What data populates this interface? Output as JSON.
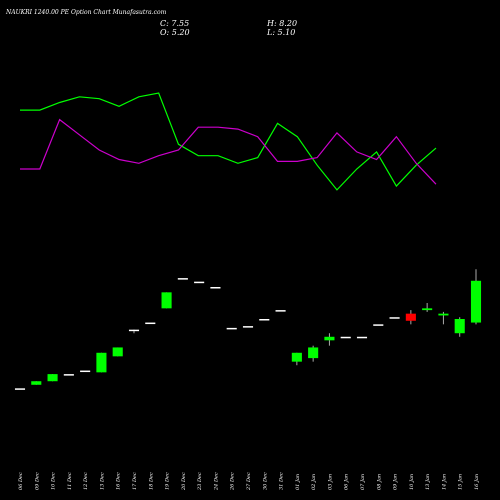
{
  "header": {
    "title": "NAUKRI 1240.00 PE Option Chart Munafasutra.com",
    "close": "C: 7.55",
    "open": "O: 5.20",
    "high": "H: 8.20",
    "low": "L: 5.10"
  },
  "colors": {
    "background": "#000000",
    "green_line": "#00ff00",
    "magenta_line": "#cc00cc",
    "up_candle": "#00ff00",
    "down_candle": "#ff0000",
    "neutral_candle": "#ffffff",
    "wick": "#aaaaaa",
    "text": "#ffffff"
  },
  "chart_data": {
    "type": "candlestick",
    "title": "NAUKRI 1240.00 PE Option Chart Munafasutra.com",
    "categories": [
      "06 Dec",
      "09 Dec",
      "10 Dec",
      "11 Dec",
      "12 Dec",
      "13 Dec",
      "16 Dec",
      "17 Dec",
      "18 Dec",
      "19 Dec",
      "20 Dec",
      "23 Dec",
      "24 Dec",
      "26 Dec",
      "27 Dec",
      "30 Dec",
      "31 Dec",
      "01 Jan",
      "02 Jan",
      "03 Jan",
      "06 Jan",
      "07 Jan",
      "08 Jan",
      "09 Jan",
      "10 Jan",
      "13 Jan",
      "14 Jan",
      "15 Jan",
      "16 Jan"
    ],
    "candles": [
      {
        "open": 1.5,
        "high": 1.5,
        "low": 1.5,
        "close": 1.5
      },
      {
        "open": 1.7,
        "high": 1.9,
        "low": 1.7,
        "close": 1.9
      },
      {
        "open": 1.9,
        "high": 2.3,
        "low": 1.9,
        "close": 2.3
      },
      {
        "open": 2.3,
        "high": 2.3,
        "low": 2.3,
        "close": 2.3
      },
      {
        "open": 2.5,
        "high": 2.5,
        "low": 2.5,
        "close": 2.5
      },
      {
        "open": 2.4,
        "high": 3.5,
        "low": 2.4,
        "close": 3.5
      },
      {
        "open": 3.3,
        "high": 3.8,
        "low": 3.3,
        "close": 3.8
      },
      {
        "open": 4.8,
        "high": 4.8,
        "low": 4.6,
        "close": 4.8
      },
      {
        "open": 5.2,
        "high": 5.2,
        "low": 5.2,
        "close": 5.2
      },
      {
        "open": 6.0,
        "high": 6.9,
        "low": 6.0,
        "close": 6.9
      },
      {
        "open": 7.7,
        "high": 7.7,
        "low": 7.7,
        "close": 7.7
      },
      {
        "open": 7.5,
        "high": 7.5,
        "low": 7.5,
        "close": 7.5
      },
      {
        "open": 7.2,
        "high": 7.2,
        "low": 7.2,
        "close": 7.2
      },
      {
        "open": 4.9,
        "high": 4.9,
        "low": 4.9,
        "close": 4.9
      },
      {
        "open": 5.0,
        "high": 5.0,
        "low": 5.0,
        "close": 5.0
      },
      {
        "open": 5.4,
        "high": 5.4,
        "low": 5.4,
        "close": 5.4
      },
      {
        "open": 5.9,
        "high": 5.9,
        "low": 5.9,
        "close": 5.9
      },
      {
        "open": 3.0,
        "high": 3.5,
        "low": 2.8,
        "close": 3.5
      },
      {
        "open": 3.2,
        "high": 3.9,
        "low": 3.0,
        "close": 3.8
      },
      {
        "open": 4.2,
        "high": 4.6,
        "low": 3.9,
        "close": 4.4
      },
      {
        "open": 4.4,
        "high": 4.4,
        "low": 4.4,
        "close": 4.4
      },
      {
        "open": 4.4,
        "high": 4.4,
        "low": 4.4,
        "close": 4.4
      },
      {
        "open": 5.1,
        "high": 5.1,
        "low": 5.1,
        "close": 5.1
      },
      {
        "open": 5.5,
        "high": 5.5,
        "low": 5.5,
        "close": 5.5
      },
      {
        "open": 5.7,
        "high": 5.9,
        "low": 5.1,
        "close": 5.3
      },
      {
        "open": 5.9,
        "high": 6.3,
        "low": 5.8,
        "close": 6.0
      },
      {
        "open": 5.6,
        "high": 5.8,
        "low": 5.1,
        "close": 5.7
      },
      {
        "open": 4.6,
        "high": 5.5,
        "low": 4.4,
        "close": 5.4
      },
      {
        "open": 5.2,
        "high": 8.2,
        "low": 5.1,
        "close": 7.55
      }
    ],
    "upper_line": [
      7.1,
      7.1,
      7.5,
      7.8,
      7.7,
      7.3,
      7.8,
      8.0,
      5.3,
      4.7,
      4.7,
      4.3,
      4.6,
      6.4,
      5.7,
      4.2,
      2.9,
      4.0,
      4.9,
      3.1,
      4.2,
      5.1
    ],
    "lower_line": [
      4.0,
      4.0,
      6.6,
      5.8,
      5.0,
      4.5,
      4.3,
      4.7,
      5.0,
      6.2,
      6.2,
      6.1,
      5.7,
      4.4,
      4.4,
      4.6,
      5.9,
      4.9,
      4.5,
      5.7,
      4.3,
      3.2
    ],
    "ylim": [
      0,
      10
    ]
  }
}
